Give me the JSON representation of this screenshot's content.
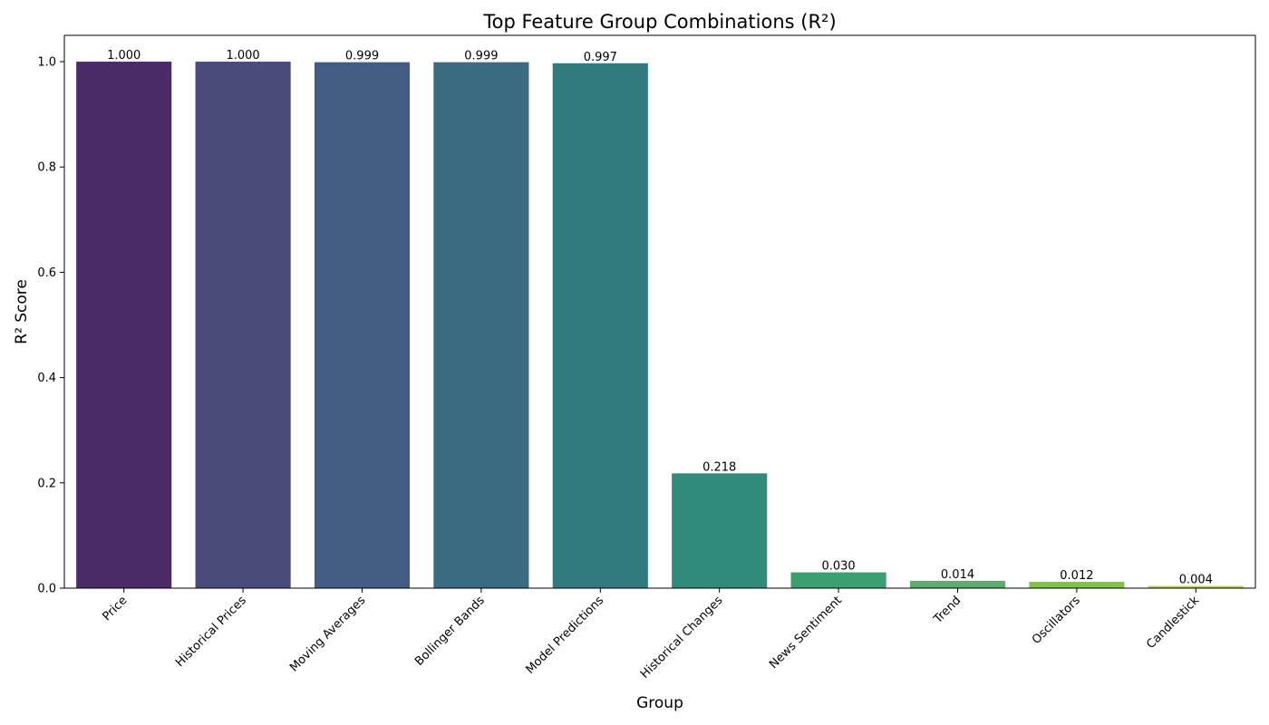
{
  "chart_data": {
    "type": "bar",
    "title": "Top Feature Group Combinations (R²)",
    "xlabel": "Group",
    "ylabel": "R² Score",
    "categories": [
      "Price",
      "Historical Prices",
      "Moving Averages",
      "Bollinger Bands",
      "Model Predictions",
      "Historical Changes",
      "News Sentiment",
      "Trend",
      "Oscillators",
      "Candlestick"
    ],
    "values": [
      1.0,
      1.0,
      0.999,
      0.999,
      0.997,
      0.218,
      0.03,
      0.014,
      0.012,
      0.004
    ],
    "value_labels": [
      "1.000",
      "1.000",
      "0.999",
      "0.999",
      "0.997",
      "0.218",
      "0.030",
      "0.014",
      "0.012",
      "0.004"
    ],
    "ylim": [
      0,
      1.05
    ],
    "yticks": [
      0.0,
      0.2,
      0.4,
      0.6,
      0.8,
      1.0
    ],
    "ytick_labels": [
      "0.0",
      "0.2",
      "0.4",
      "0.6",
      "0.8",
      "1.0"
    ],
    "grid": false,
    "legend": "none",
    "colors": [
      "#4b2b67",
      "#4a4a7b",
      "#435c83",
      "#3b6b80",
      "#317b7f",
      "#318b7c",
      "#3ba071",
      "#5cad6e",
      "#84c04f",
      "#bccc3e"
    ]
  }
}
